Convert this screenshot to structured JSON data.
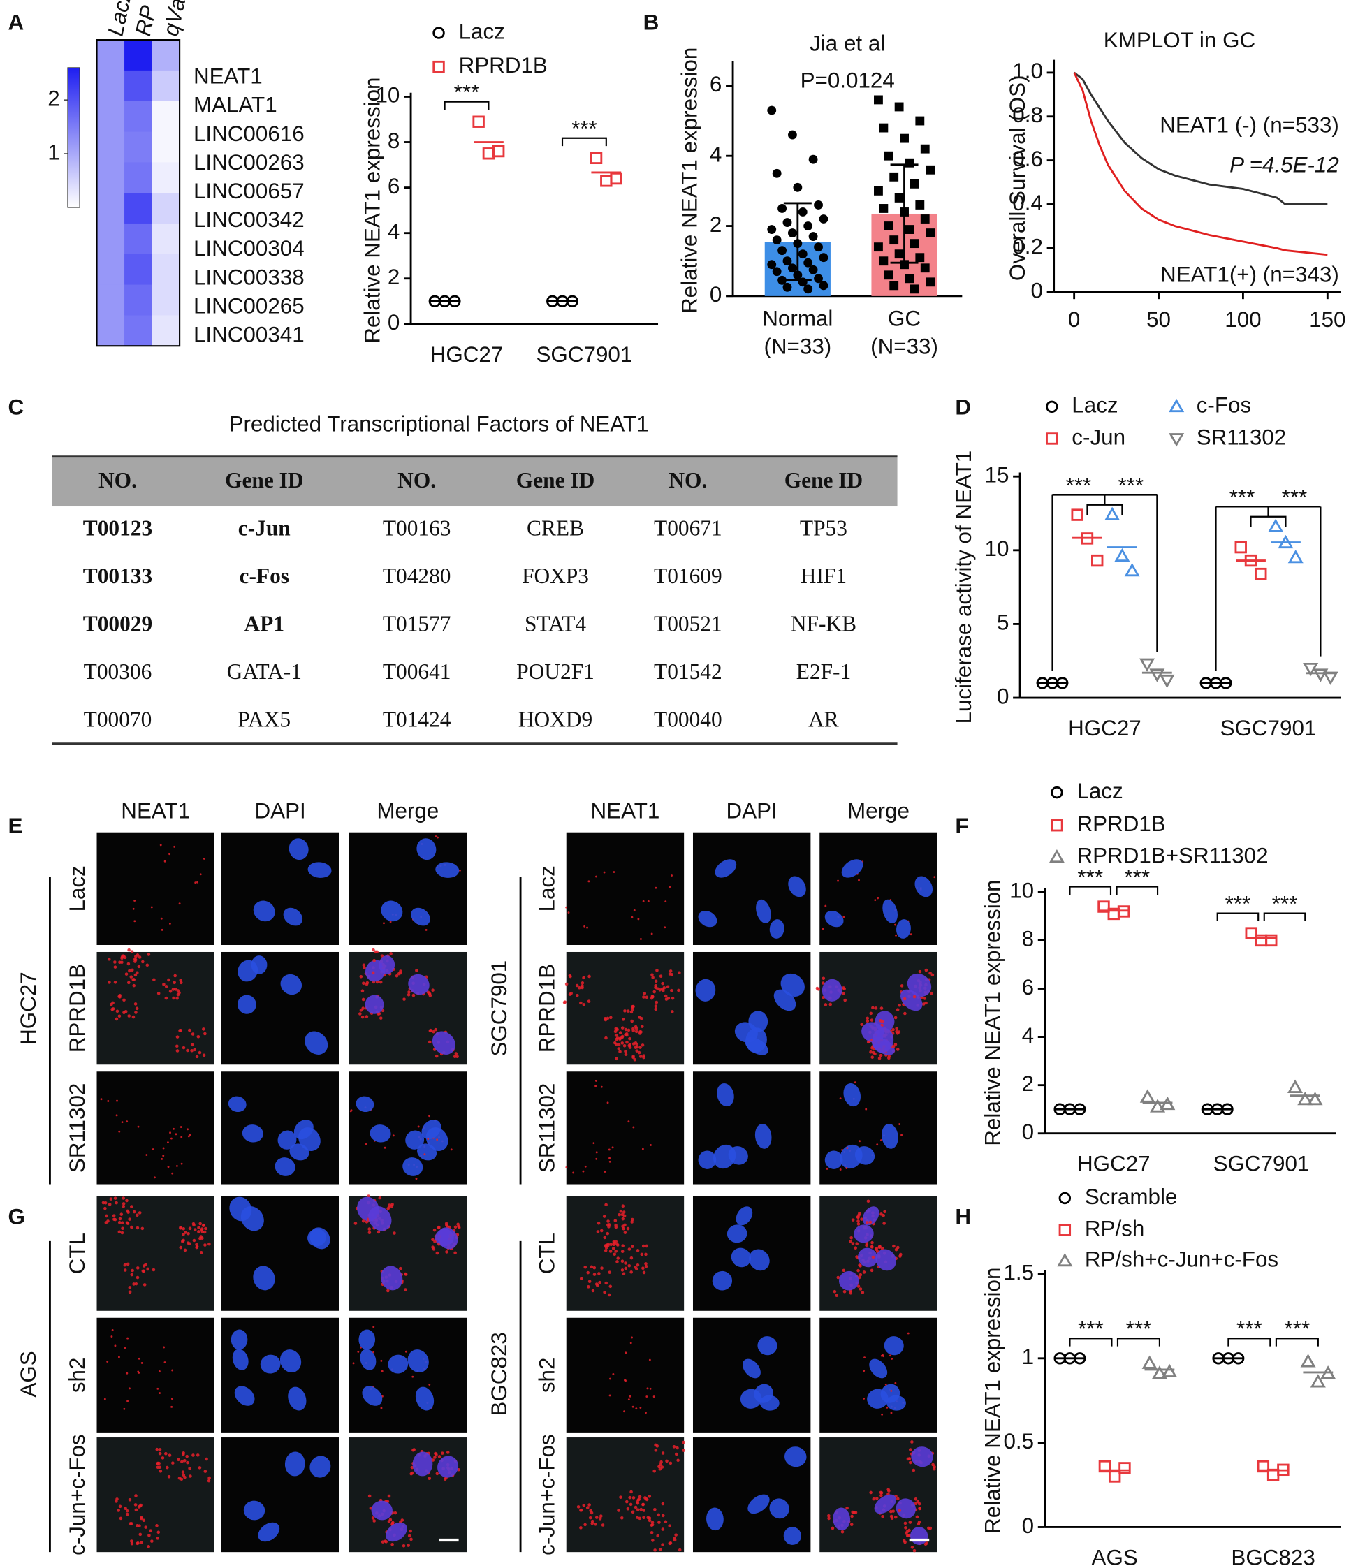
{
  "figure": {
    "panel_labels": [
      "A",
      "B",
      "C",
      "D",
      "E",
      "F",
      "G",
      "H"
    ]
  },
  "heatmap": {
    "columns": [
      "LacZ",
      "RP",
      "qVal"
    ],
    "rows": [
      "NEAT1",
      "MALAT1",
      "LINC00616",
      "LINC00263",
      "LINC00657",
      "LINC00342",
      "LINC00304",
      "LINC00338",
      "LINC00265",
      "LINC00341"
    ],
    "values": [
      [
        1.2,
        2.6,
        0.9
      ],
      [
        1.2,
        2.0,
        0.6
      ],
      [
        1.2,
        1.6,
        0.1
      ],
      [
        1.2,
        1.5,
        0.1
      ],
      [
        1.2,
        1.6,
        0.2
      ],
      [
        1.2,
        2.1,
        0.5
      ],
      [
        1.2,
        1.7,
        0.3
      ],
      [
        1.2,
        1.9,
        0.4
      ],
      [
        1.2,
        1.7,
        0.4
      ],
      [
        1.2,
        1.6,
        0.3
      ]
    ],
    "clim": [
      0,
      2.6
    ],
    "ticks": [
      1,
      2
    ]
  },
  "chart_data": [
    {
      "type": "dot",
      "ylabel": "Relative NEAT1 expression",
      "categories": [
        "HGC27",
        "SGC7901"
      ],
      "series": [
        {
          "name": "Lacz",
          "color": "#000000",
          "marker": "circle",
          "values": [
            [
              1,
              1,
              1
            ],
            [
              1,
              1,
              1
            ]
          ]
        },
        {
          "name": "RPRD1B",
          "color": "#e8383d",
          "marker": "square",
          "values": [
            [
              8.9,
              7.5,
              7.6
            ],
            [
              7.3,
              6.3,
              6.4
            ]
          ]
        }
      ],
      "ylim": [
        0,
        10
      ],
      "yticks": [
        0,
        2,
        4,
        6,
        8,
        10
      ],
      "significance": [
        [
          "***"
        ],
        [
          "***"
        ]
      ]
    },
    {
      "type": "bar_scatter",
      "title": "Jia et al",
      "annotation": "P=0.0124",
      "ylabel": "Relative NEAT1 expression",
      "categories": [
        "Normal",
        "GC"
      ],
      "category_notes": [
        "(N=33)",
        "(N=33)"
      ],
      "values": [
        1.55,
        2.35
      ],
      "error": [
        1.1,
        1.4
      ],
      "colors": [
        "#3d8ee6",
        "#f3828a"
      ],
      "point_markers": [
        "circle",
        "square"
      ],
      "points": [
        [
          5.3,
          4.6,
          3.9,
          3.5,
          3.1,
          2.6,
          2.5,
          2.4,
          2.2,
          2.1,
          2.0,
          1.9,
          1.8,
          1.7,
          1.6,
          1.5,
          1.4,
          1.3,
          1.2,
          1.1,
          1.0,
          0.95,
          0.9,
          0.8,
          0.75,
          0.7,
          0.6,
          0.5,
          0.45,
          0.4,
          0.3,
          0.25,
          0.2
        ],
        [
          5.6,
          5.4,
          5.0,
          4.8,
          4.5,
          4.2,
          4.0,
          3.8,
          3.6,
          3.4,
          3.2,
          3.0,
          2.8,
          2.6,
          2.5,
          2.4,
          2.2,
          2.0,
          1.9,
          1.8,
          1.6,
          1.5,
          1.4,
          1.2,
          1.1,
          1.0,
          0.9,
          0.8,
          0.6,
          0.5,
          0.4,
          0.3,
          0.2
        ]
      ],
      "ylim": [
        0,
        6.6
      ],
      "yticks": [
        0,
        2,
        4,
        6
      ]
    },
    {
      "type": "line",
      "title": "KMPLOT in GC",
      "ylabel": "Overall Survival (OS)",
      "annotation": "P =4.5E-12",
      "x": [
        0,
        5,
        10,
        15,
        20,
        30,
        40,
        50,
        60,
        70,
        80,
        100,
        120,
        125,
        150
      ],
      "series": [
        {
          "name": "NEAT1 (-) (n=533)",
          "color": "#333333",
          "values": [
            1,
            0.97,
            0.9,
            0.84,
            0.78,
            0.68,
            0.61,
            0.56,
            0.53,
            0.51,
            0.49,
            0.47,
            0.43,
            0.4,
            0.4
          ]
        },
        {
          "name": "NEAT1(+) (n=343)",
          "color": "#e02020",
          "values": [
            1,
            0.92,
            0.78,
            0.67,
            0.58,
            0.46,
            0.38,
            0.33,
            0.3,
            0.28,
            0.26,
            0.23,
            0.2,
            0.19,
            0.17
          ]
        }
      ],
      "xlim": [
        -12,
        158
      ],
      "xticks": [
        0,
        50,
        100,
        150
      ],
      "ylim": [
        0,
        1.04
      ],
      "yticks": [
        0,
        0.2,
        0.4,
        0.6,
        0.8,
        {
          "value": 1,
          "label": "1.0"
        }
      ]
    },
    {
      "type": "dot",
      "ylabel": "Luciferase activity of NEAT1",
      "categories": [
        "HGC27",
        "SGC7901"
      ],
      "series": [
        {
          "name": "Lacz",
          "color": "#000000",
          "marker": "circle",
          "values": [
            [
              1,
              1,
              1
            ],
            [
              1,
              1,
              1
            ]
          ]
        },
        {
          "name": "c-Jun",
          "color": "#e8383d",
          "marker": "square",
          "values": [
            [
              12.4,
              10.8,
              9.3
            ],
            [
              10.2,
              9.3,
              8.4
            ]
          ]
        },
        {
          "name": "c-Fos",
          "color": "#4a90e2",
          "marker": "triangle",
          "values": [
            [
              12.4,
              9.6,
              8.6
            ],
            [
              11.6,
              10.5,
              9.5
            ]
          ]
        },
        {
          "name": "SR11302",
          "color": "#808080",
          "marker": "tridown",
          "values": [
            [
              2.3,
              1.6,
              1.2
            ],
            [
              2.0,
              1.6,
              1.4
            ]
          ]
        }
      ],
      "ylim": [
        0,
        15
      ],
      "yticks": [
        0,
        5,
        10,
        15
      ],
      "significance": [
        [
          "***",
          "***"
        ],
        [
          "***",
          "***"
        ]
      ]
    },
    {
      "type": "dot",
      "ylabel": "Relative NEAT1 expression",
      "categories": [
        "HGC27",
        "SGC7901"
      ],
      "series": [
        {
          "name": "Lacz",
          "color": "#000000",
          "marker": "circle",
          "values": [
            [
              1,
              1,
              1
            ],
            [
              1,
              1,
              1
            ]
          ]
        },
        {
          "name": "RPRD1B",
          "color": "#e8383d",
          "marker": "square",
          "values": [
            [
              9.4,
              9.1,
              9.2
            ],
            [
              8.3,
              8.0,
              8.0
            ]
          ]
        },
        {
          "name": "RPRD1B+SR11302",
          "color": "#808080",
          "marker": "triangle",
          "values": [
            [
              1.5,
              1.1,
              1.2
            ],
            [
              1.9,
              1.4,
              1.4
            ]
          ]
        }
      ],
      "ylim": [
        0,
        10
      ],
      "yticks": [
        0,
        2,
        4,
        6,
        8,
        10
      ],
      "significance": [
        [
          "***",
          "***"
        ],
        [
          "***",
          "***"
        ]
      ]
    },
    {
      "type": "dot",
      "ylabel": "Relative NEAT1 expression",
      "categories": [
        "AGS",
        "BGC823"
      ],
      "series": [
        {
          "name": "Scramble",
          "color": "#000000",
          "marker": "circle",
          "values": [
            [
              1,
              1,
              1
            ],
            [
              1,
              1,
              1
            ]
          ]
        },
        {
          "name": "RP/sh",
          "color": "#e8383d",
          "marker": "square",
          "values": [
            [
              0.36,
              0.3,
              0.35
            ],
            [
              0.36,
              0.31,
              0.34
            ]
          ]
        },
        {
          "name": "RP/sh+c-Jun+c-Fos",
          "color": "#808080",
          "marker": "triangle",
          "values": [
            [
              0.97,
              0.91,
              0.92
            ],
            [
              0.98,
              0.86,
              0.91
            ]
          ]
        }
      ],
      "ylim": [
        0,
        1.5
      ],
      "yticks": [
        0,
        0.5,
        1,
        1.5
      ],
      "significance": [
        [
          "***",
          "***"
        ],
        [
          "***",
          "***"
        ]
      ]
    }
  ],
  "table": {
    "title": "Predicted Transcriptional Factors of NEAT1",
    "header": [
      "NO.",
      "Gene ID",
      "NO.",
      "Gene ID",
      "NO.",
      "Gene ID"
    ],
    "rows": [
      [
        "T00123",
        "c-Jun",
        "T00163",
        "CREB",
        "T00671",
        "TP53"
      ],
      [
        "T00133",
        "c-Fos",
        "T04280",
        "FOXP3",
        "T01609",
        "HIF1"
      ],
      [
        "T00029",
        "AP1",
        "T01577",
        "STAT4",
        "T00521",
        "NF-KB"
      ],
      [
        "T00306",
        "GATA-1",
        "T00641",
        "POU2F1",
        "T01542",
        "E2F-1"
      ],
      [
        "T00070",
        "PAX5",
        "T01424",
        "HOXD9",
        "T00040",
        "AR"
      ]
    ]
  },
  "micrographs": [
    {
      "columns": [
        "NEAT1",
        "DAPI",
        "Merge"
      ],
      "groups": [
        {
          "name": "HGC27",
          "rows": [
            "Lacz",
            "RPRD1B",
            "SR11302"
          ]
        },
        {
          "name": "SGC7901",
          "rows": [
            "Lacz",
            "RPRD1B",
            "SR11302"
          ]
        }
      ]
    },
    {
      "groups": [
        {
          "name": "AGS",
          "rows": [
            "CTL",
            "sh2",
            "c-Jun+c-Fos"
          ]
        },
        {
          "name": "BGC823",
          "rows": [
            "CTL",
            "sh2",
            "c-Jun+c-Fos"
          ]
        }
      ]
    }
  ]
}
